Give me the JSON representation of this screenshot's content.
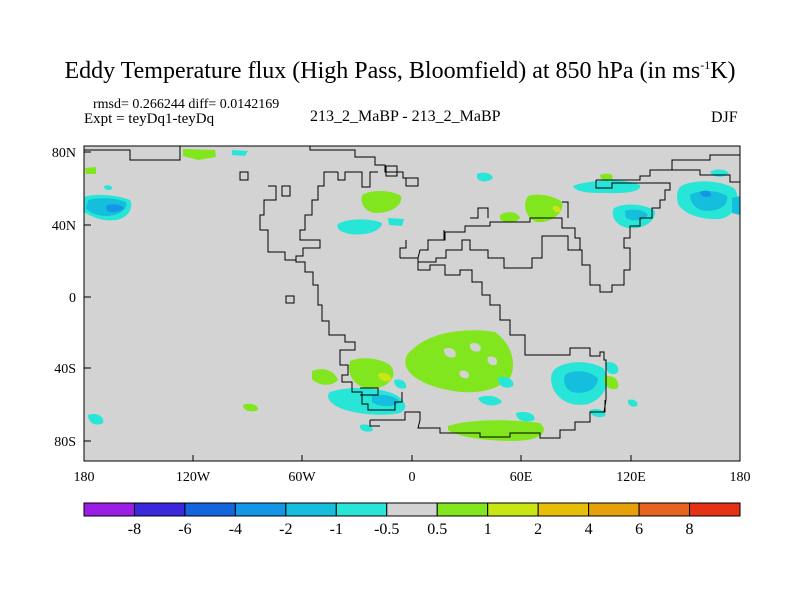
{
  "header": {
    "title_main": "Eddy Temperature flux (High Pass, Bloomfield) at 850 hPa (in ms",
    "title_sup": "-1",
    "title_end": "K)",
    "stats": "rmsd= 0.266244 diff= 0.0142169",
    "expt": "Expt = teyDq1-teyDq",
    "center_label": "213_2_MaBP - 213_2_MaBP",
    "season": "DJF"
  },
  "map": {
    "type": "filled-contour-map",
    "projection": "cylindrical-equidistant",
    "lon_range": [
      -180,
      180
    ],
    "lat_range": [
      -90,
      90
    ],
    "lat_ticks": [
      "80N",
      "40N",
      "0",
      "40S",
      "80S"
    ],
    "lon_ticks": [
      "180",
      "120W",
      "60W",
      "0",
      "60E",
      "120E",
      "180"
    ],
    "background_color": "#d3d3d3"
  },
  "colorbar": {
    "colors": [
      "#9b1ee6",
      "#3c28dc",
      "#1464dc",
      "#1496e6",
      "#14bedc",
      "#28e6d7",
      "#d3d3d3",
      "#82e61e",
      "#c8e614",
      "#e6be0a",
      "#e6a00a",
      "#e6641e",
      "#e63214"
    ],
    "labels": [
      "-8",
      "-6",
      "-4",
      "-2",
      "-1",
      "-0.5",
      "0.5",
      "1",
      "2",
      "4",
      "6",
      "8"
    ]
  }
}
